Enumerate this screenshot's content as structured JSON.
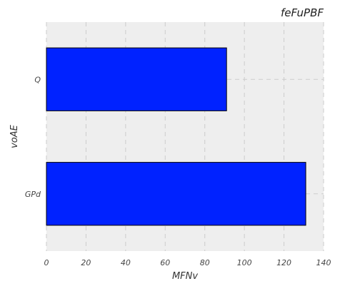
{
  "chart_data": {
    "type": "bar",
    "orientation": "horizontal",
    "title": "feFuPBF",
    "xlabel": "MFNv",
    "ylabel": "voAE",
    "categories": [
      "Q",
      "GPd"
    ],
    "values": [
      91,
      131
    ],
    "xlim": [
      0,
      140
    ],
    "xticks": [
      "0",
      "20",
      "40",
      "60",
      "80",
      "100",
      "120",
      "140"
    ],
    "grid": true,
    "bar_color": "#0022ff",
    "background_color": "#eeeeee"
  }
}
